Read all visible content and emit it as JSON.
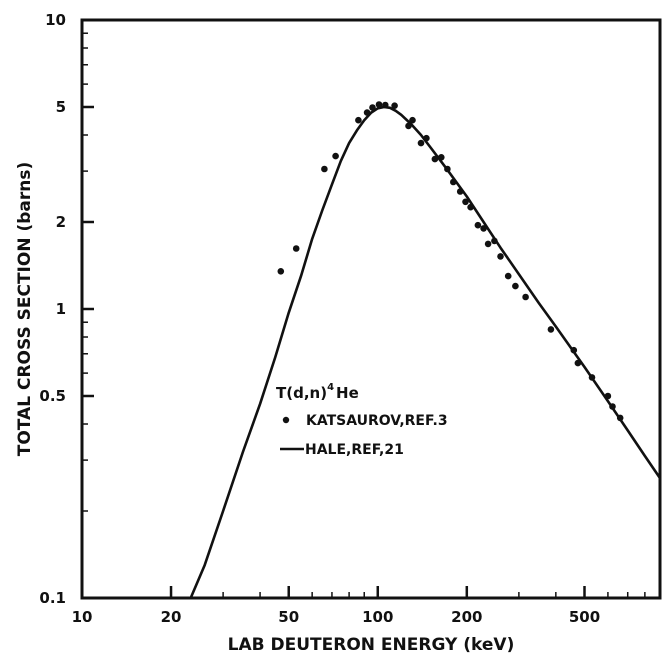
{
  "chart_data": {
    "type": "line",
    "title": "",
    "xlabel": "LAB DEUTERON ENERGY (keV)",
    "ylabel": "TOTAL CROSS SECTION (barns)",
    "x_scale": "log",
    "y_scale": "log",
    "xlim": [
      10,
      900
    ],
    "ylim": [
      0.1,
      10
    ],
    "x_ticks": [
      {
        "value": 10,
        "label": "10"
      },
      {
        "value": 20,
        "label": "20"
      },
      {
        "value": 50,
        "label": "50"
      },
      {
        "value": 100,
        "label": "100"
      },
      {
        "value": 200,
        "label": "200"
      },
      {
        "value": 500,
        "label": "500"
      }
    ],
    "y_ticks": [
      {
        "value": 0.1,
        "label": "0.1"
      },
      {
        "value": 0.5,
        "label": "0.5"
      },
      {
        "value": 1,
        "label": "1"
      },
      {
        "value": 2,
        "label": "2"
      },
      {
        "value": 5,
        "label": "5"
      },
      {
        "value": 10,
        "label": "10"
      }
    ],
    "legend": {
      "placement": "center-right",
      "reaction_main": "T(d,n)",
      "reaction_sup": "4",
      "reaction_end": "He"
    },
    "series": [
      {
        "name": "KATSAUROV,REF.3",
        "kind": "scatter",
        "color": "#111111",
        "x": [
          47,
          53,
          66,
          72,
          86,
          92,
          96,
          101,
          106,
          114,
          127,
          131,
          140,
          146,
          156,
          164,
          172,
          180,
          190,
          198,
          206,
          218,
          228,
          236,
          248,
          260,
          276,
          292,
          316,
          385,
          460,
          475,
          530,
          600,
          622,
          660
        ],
        "y": [
          1.35,
          1.62,
          3.05,
          3.38,
          4.5,
          4.78,
          4.98,
          5.1,
          5.08,
          5.05,
          4.3,
          4.5,
          3.75,
          3.9,
          3.3,
          3.35,
          3.05,
          2.75,
          2.55,
          2.35,
          2.25,
          1.95,
          1.9,
          1.68,
          1.72,
          1.52,
          1.3,
          1.2,
          1.1,
          0.85,
          0.72,
          0.65,
          0.58,
          0.5,
          0.46,
          0.42
        ]
      },
      {
        "name": "HALE,REF,21",
        "kind": "line",
        "color": "#111111",
        "x": [
          23.3,
          26,
          30,
          35,
          40,
          45,
          50,
          55,
          60,
          65,
          70,
          75,
          80,
          85,
          90,
          95,
          100,
          105,
          110,
          115,
          120,
          130,
          140,
          150,
          170,
          200,
          230,
          260,
          300,
          350,
          400,
          500,
          600,
          700,
          800,
          900
        ],
        "y": [
          0.1,
          0.13,
          0.2,
          0.32,
          0.47,
          0.68,
          0.97,
          1.3,
          1.75,
          2.2,
          2.7,
          3.25,
          3.75,
          4.15,
          4.5,
          4.78,
          4.95,
          5.0,
          4.97,
          4.85,
          4.7,
          4.35,
          4.0,
          3.65,
          3.08,
          2.45,
          1.97,
          1.63,
          1.32,
          1.05,
          0.87,
          0.63,
          0.48,
          0.38,
          0.31,
          0.26
        ]
      }
    ]
  }
}
